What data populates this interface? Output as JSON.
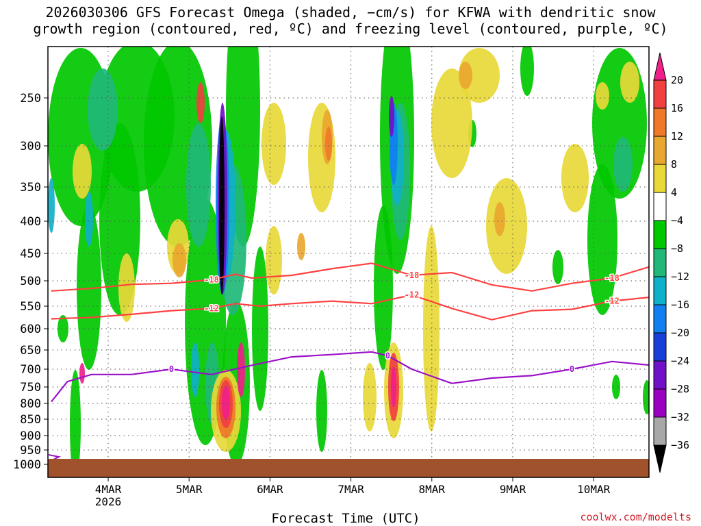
{
  "title_line1": "2026030306 GFS Forecast Omega (shaded, −cm/s) for KFWA with dendritic snow",
  "title_line2": "growth region (contoured, red, ºC) and freezing level (contoured, purple, ºC)",
  "xaxis_title": "Forecast Time (UTC)",
  "attribution": "coolwx.com/modelts",
  "colors": {
    "terrain": "#a0522d",
    "snow_growth_contour": "#ff4040",
    "freezing_contour": "#9a10c8"
  },
  "chart_data": {
    "type": "heatmap",
    "x_unit": "Forecast Time (UTC)",
    "x_ticks": [
      {
        "label": "4MAR",
        "sublabel": "2026"
      },
      {
        "label": "5MAR",
        "sublabel": ""
      },
      {
        "label": "6MAR",
        "sublabel": ""
      },
      {
        "label": "7MAR",
        "sublabel": ""
      },
      {
        "label": "8MAR",
        "sublabel": ""
      },
      {
        "label": "9MAR",
        "sublabel": ""
      },
      {
        "label": "10MAR",
        "sublabel": ""
      }
    ],
    "y_ticks": [
      "250",
      "300",
      "350",
      "400",
      "450",
      "500",
      "550",
      "600",
      "650",
      "700",
      "750",
      "800",
      "850",
      "900",
      "950",
      "1000"
    ],
    "grid": true,
    "colorbar": {
      "labels": [
        "20",
        "16",
        "12",
        "8",
        "4",
        "−4",
        "−8",
        "−12",
        "−16",
        "−20",
        "−24",
        "−28",
        "−32",
        "−36"
      ],
      "colors": [
        "#f0208a",
        "#f04040",
        "#f07828",
        "#e8a830",
        "#e8d838",
        "#ffffff",
        "#00c800",
        "#20b878",
        "#10b0c8",
        "#1080f0",
        "#1840d8",
        "#7010c8",
        "#9a00c0",
        "#a8a8a8",
        "#000000"
      ]
    },
    "contours": [
      {
        "name": "snow-growth-top",
        "label": "-18",
        "color": "#ff4040",
        "x": [
          0,
          0.5,
          1,
          1.5,
          2,
          2.3,
          2.5,
          3,
          3.5,
          4,
          4.5,
          5,
          5.5,
          6,
          6.5,
          7,
          7.5
        ],
        "y": [
          520,
          515,
          507,
          505,
          498,
          488,
          495,
          490,
          478,
          468,
          490,
          485,
          508,
          520,
          505,
          495,
          473
        ]
      },
      {
        "name": "snow-growth-bottom",
        "label": "-12",
        "color": "#ff4040",
        "x": [
          0,
          0.5,
          1,
          1.5,
          2,
          2.3,
          2.6,
          3,
          3.5,
          4,
          4.5,
          5,
          5.5,
          6,
          6.5,
          7,
          7.5
        ],
        "y": [
          578,
          575,
          568,
          560,
          555,
          545,
          550,
          545,
          540,
          545,
          528,
          555,
          580,
          560,
          557,
          540,
          532
        ]
      },
      {
        "name": "freezing-level",
        "label": "0",
        "color": "#9a10c8",
        "x": [
          0,
          0.2,
          0.5,
          1,
          1.5,
          2,
          2.5,
          3,
          3.5,
          4,
          4.2,
          4.5,
          5,
          5.5,
          6,
          6.5,
          7,
          7.5
        ],
        "y": [
          795,
          735,
          715,
          715,
          700,
          715,
          690,
          668,
          662,
          655,
          665,
          700,
          740,
          725,
          718,
          700,
          680,
          690
        ]
      }
    ],
    "contour_label_values": [
      "-18",
      "-12",
      "0"
    ],
    "series_notes": []
  }
}
